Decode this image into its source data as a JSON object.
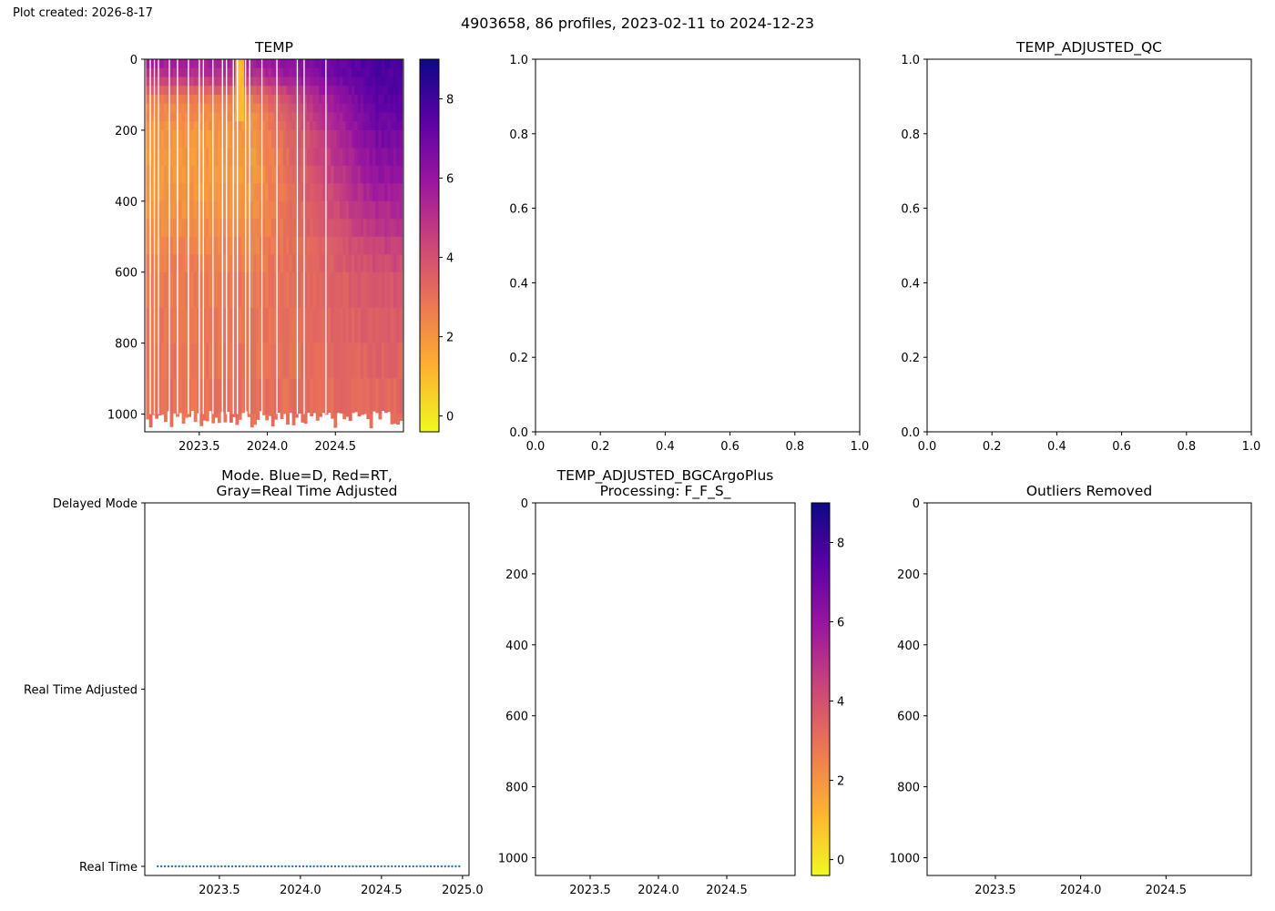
{
  "figure": {
    "created_label": "Plot created: 2026-8-17",
    "suptitle": "4903658, 86 profiles, 2023-02-11 to 2024-12-23"
  },
  "colormap": {
    "name": "plasma_r",
    "stops": [
      "#f0f921",
      "#fdb42f",
      "#ed7953",
      "#cc4778",
      "#9c179e",
      "#5c01a6",
      "#0d0887"
    ]
  },
  "chart_data": [
    {
      "id": "temp",
      "type": "heatmap",
      "title": "TEMP",
      "xlim": [
        2023.1,
        2025.0
      ],
      "ylim": [
        1050,
        0
      ],
      "xticks": [
        2023.5,
        2024.0,
        2024.5
      ],
      "xtick_labels": [
        "2023.5",
        "2024.0",
        "2024.5"
      ],
      "yticks": [
        0,
        200,
        400,
        600,
        800,
        1000
      ],
      "ytick_labels": [
        "0",
        "200",
        "400",
        "600",
        "800",
        "1000"
      ],
      "colorbar": {
        "range": [
          -0.4,
          9.0
        ],
        "ticks": [
          0,
          2,
          4,
          6,
          8
        ],
        "tick_labels": [
          "0",
          "2",
          "4",
          "6",
          "8"
        ]
      },
      "n_profiles": 86,
      "time_range": [
        "2023-02-11",
        "2024-12-23"
      ],
      "gap_times": [
        2023.14,
        2023.17,
        2023.2,
        2023.28,
        2023.34,
        2023.42,
        2023.5,
        2023.53,
        2023.6,
        2023.67,
        2023.7,
        2023.75,
        2023.78,
        2023.84,
        2023.87,
        2023.96,
        2024.07,
        2024.22,
        2024.27,
        2024.43
      ],
      "approx_profile": {
        "pressure": [
          0,
          50,
          100,
          150,
          200,
          300,
          400,
          500,
          600,
          800,
          1000
        ],
        "temp_early": [
          5.8,
          5.0,
          3.0,
          2.3,
          2.0,
          1.9,
          2.0,
          2.3,
          2.7,
          2.9,
          3.0
        ],
        "temp_late": [
          7.8,
          7.8,
          7.5,
          7.2,
          6.9,
          6.2,
          5.5,
          4.7,
          4.0,
          3.5,
          3.2
        ],
        "warm_event": {
          "time": [
            2023.77,
            2023.83
          ],
          "pressure": [
            0,
            180
          ],
          "temp": 1.0
        }
      },
      "max_pressure_range": [
        990,
        1040
      ]
    },
    {
      "id": "mid-top",
      "type": "scatter",
      "title": "",
      "xlim": [
        0,
        1
      ],
      "ylim": [
        0,
        1
      ],
      "xtick_labels": [
        "0.0",
        "0.2",
        "0.4",
        "0.6",
        "0.8",
        "1.0"
      ],
      "ytick_labels": [
        "0.0",
        "0.2",
        "0.4",
        "0.6",
        "0.8",
        "1.0"
      ],
      "values": []
    },
    {
      "id": "temp-adj-qc",
      "type": "scatter",
      "title": "TEMP_ADJUSTED_QC",
      "xlim": [
        0,
        1
      ],
      "ylim": [
        0,
        1
      ],
      "xtick_labels": [
        "0.0",
        "0.2",
        "0.4",
        "0.6",
        "0.8",
        "1.0"
      ],
      "ytick_labels": [
        "0.0",
        "0.2",
        "0.4",
        "0.6",
        "0.8",
        "1.0"
      ],
      "values": []
    },
    {
      "id": "mode",
      "type": "scatter",
      "title": "Mode. Blue=D, Red=RT,\nGray=Real Time Adjusted",
      "xlim": [
        2023.04,
        2025.04
      ],
      "xticks": [
        2023.5,
        2024.0,
        2024.5,
        2025.0
      ],
      "xtick_labels": [
        "2023.5",
        "2024.0",
        "2024.5",
        "2025.0"
      ],
      "ytick_labels": [
        "Delayed Mode",
        "Real Time Adjusted",
        "Real Time"
      ],
      "marker_color": "#1f77b4",
      "points": {
        "mode": "Real Time",
        "x_start": 2023.12,
        "x_end": 2024.98,
        "count": 86
      }
    },
    {
      "id": "bgc",
      "type": "heatmap",
      "title": "TEMP_ADJUSTED_BGCArgoPlus\nProcessing: F_F_S_",
      "xlim": [
        2023.1,
        2025.0
      ],
      "ylim": [
        1050,
        0
      ],
      "xticks": [
        2023.5,
        2024.0,
        2024.5
      ],
      "xtick_labels": [
        "2023.5",
        "2024.0",
        "2024.5"
      ],
      "yticks": [
        0,
        200,
        400,
        600,
        800,
        1000
      ],
      "ytick_labels": [
        "0",
        "200",
        "400",
        "600",
        "800",
        "1000"
      ],
      "colorbar": {
        "range": [
          -0.4,
          9.0
        ],
        "ticks": [
          0,
          2,
          4,
          6,
          8
        ],
        "tick_labels": [
          "0",
          "2",
          "4",
          "6",
          "8"
        ]
      },
      "values": []
    },
    {
      "id": "outliers",
      "type": "scatter",
      "title": "Outliers Removed",
      "xlim": [
        2023.1,
        2025.0
      ],
      "ylim": [
        1050,
        0
      ],
      "xticks": [
        2023.5,
        2024.0,
        2024.5
      ],
      "xtick_labels": [
        "2023.5",
        "2024.0",
        "2024.5"
      ],
      "yticks": [
        0,
        200,
        400,
        600,
        800,
        1000
      ],
      "ytick_labels": [
        "0",
        "200",
        "400",
        "600",
        "800",
        "1000"
      ],
      "values": []
    }
  ]
}
